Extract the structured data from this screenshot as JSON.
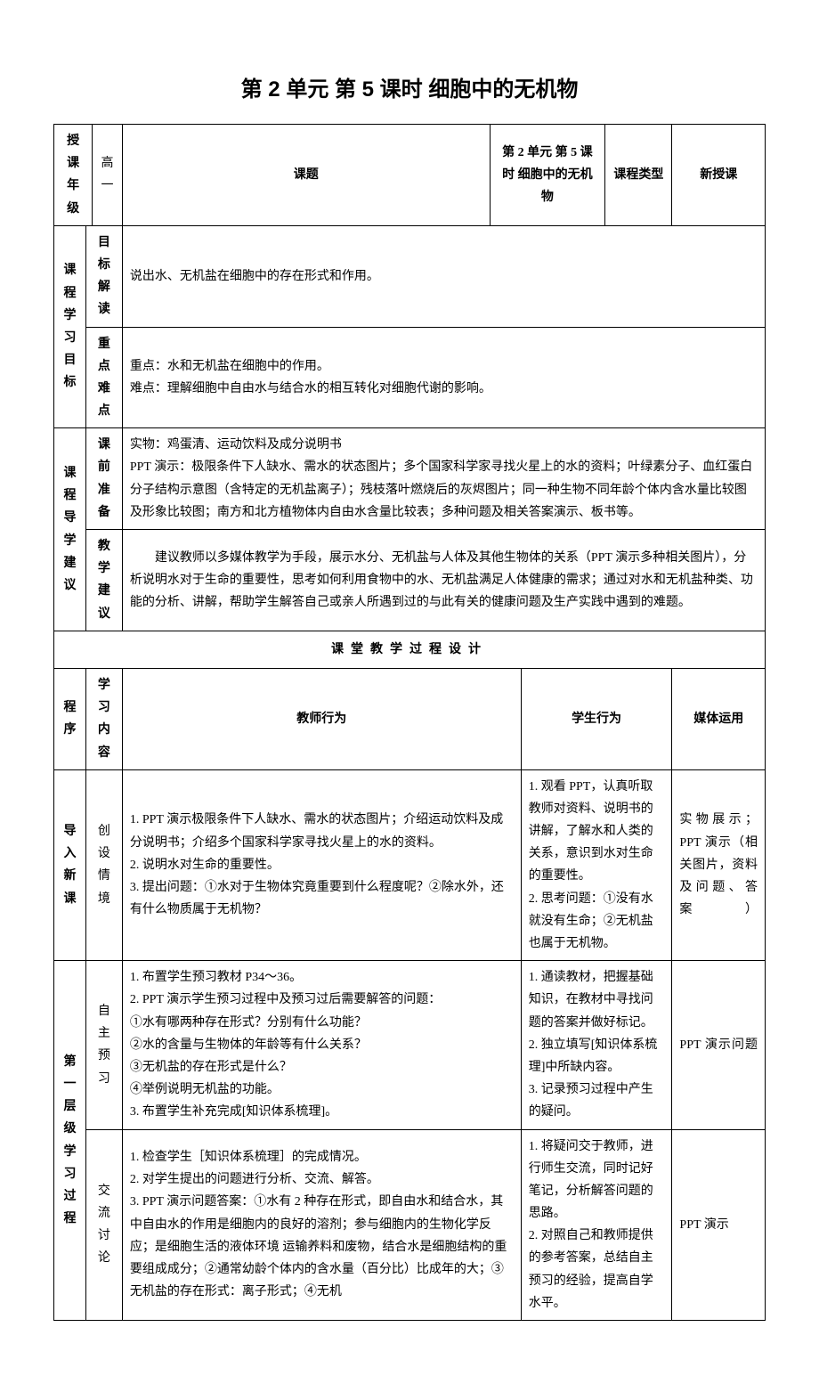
{
  "title": "第 2 单元 第 5 课时 细胞中的无机物",
  "header": {
    "grade_label": "授课年级",
    "grade_value": "高一",
    "topic_label": "课题",
    "topic_value": "第 2 单元 第 5 课时 细胞中的无机物",
    "type_label": "课程类型",
    "type_value": "新授课"
  },
  "objectives": {
    "section_label": "课程学习目标",
    "goal_label": "目标解读",
    "goal_text": "说出水、无机盐在细胞中的存在形式和作用。",
    "focus_label": "重点难点",
    "focus_text1": "重点：水和无机盐在细胞中的作用。",
    "focus_text2": "难点：理解细胞中自由水与结合水的相互转化对细胞代谢的影响。"
  },
  "guidance": {
    "section_label": "课程导学建议",
    "prep_label": "课前准备",
    "prep_text": "实物：鸡蛋清、运动饮料及成分说明书\nPPT 演示：极限条件下人缺水、需水的状态图片；多个国家科学家寻找火星上的水的资料；叶绿素分子、血红蛋白分子结构示意图（含特定的无机盐离子）；残枝落叶燃烧后的灰烬图片；同一种生物不同年龄个体内含水量比较图及形象比较图；南方和北方植物体内自由水含量比较表；多种问题及相关答案演示、板书等。",
    "advice_label": "教学建议",
    "advice_text": "建议教师以多媒体教学为手段，展示水分、无机盐与人体及其他生物体的关系（PPT 演示多种相关图片），分析说明水对于生命的重要性，思考如何利用食物中的水、无机盐满足人体健康的需求；通过对水和无机盐种类、功能的分析、讲解，帮助学生解答自己或亲人所遇到过的与此有关的健康问题及生产实践中遇到的难题。"
  },
  "process_header": "课堂教学过程设计",
  "columns": {
    "procedure": "程序",
    "content": "学习内容",
    "teacher": "教师行为",
    "student": "学生行为",
    "media": "媒体运用"
  },
  "rows": {
    "intro": {
      "procedure": "导入新课",
      "content": "创设情境",
      "teacher": "1. PPT 演示极限条件下人缺水、需水的状态图片；介绍运动饮料及成分说明书；介绍多个国家科学家寻找火星上的水的资料。\n2. 说明水对生命的重要性。\n3. 提出问题：①水对于生物体究竟重要到什么程度呢？②除水外，还有什么物质属于无机物？",
      "student": "1. 观看 PPT，认真听取教师对资料、说明书的讲解，了解水和人类的关系，意识到水对生命的重要性。\n2. 思考问题：①没有水就没有生命；②无机盐也属于无机物。",
      "media": "实物展示；PPT 演示（相关图片，资料及问题、答案）"
    },
    "level1": {
      "procedure": "第一层级学习过程",
      "preview": {
        "content": "自主预习",
        "teacher": "1. 布置学生预习教材 P34～36。\n2. PPT 演示学生预习过程中及预习过后需要解答的问题：\n①水有哪两种存在形式？分别有什么功能？\n②水的含量与生物体的年龄等有什么关系？\n③无机盐的存在形式是什么？\n④举例说明无机盐的功能。\n3. 布置学生补充完成[知识体系梳理]。",
        "student": "1. 通读教材，把握基础知识，在教材中寻找问题的答案并做好标记。\n2. 独立填写[知识体系梳理]中所缺内容。\n3. 记录预习过程中产生的疑问。",
        "media": "PPT 演示问题"
      },
      "discuss": {
        "content": "交流讨论",
        "teacher": "1. 检查学生［知识体系梳理］的完成情况。\n2. 对学生提出的问题进行分析、交流、解答。\n3. PPT 演示问题答案：①水有 2 种存在形式，即自由水和结合水，其中自由水的作用是细胞内的良好的溶剂；参与细胞内的生物化学反应；是细胞生活的液体环境 运输养料和废物，结合水是细胞结构的重要组成成分；②通常幼龄个体内的含水量（百分比）比成年的大；③无机盐的存在形式：离子形式；④无机",
        "student": "1. 将疑问交于教师，进行师生交流，同时记好笔记，分析解答问题的思路。\n2. 对照自己和教师提供的参考答案，总结自主预习的经验，提高自学水平。",
        "media": "PPT 演示"
      }
    }
  }
}
